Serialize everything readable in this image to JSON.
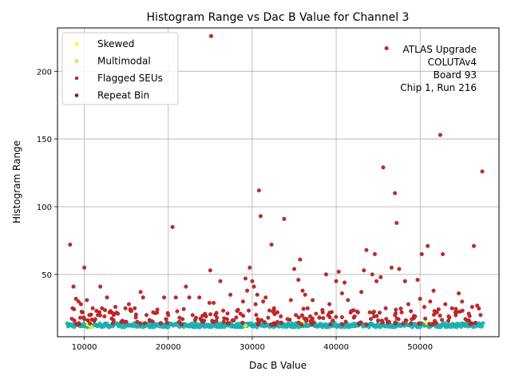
{
  "chart_data": {
    "type": "scatter",
    "title": "Histogram Range vs Dac B Value for Channel 3",
    "xlabel": "Dac B Value",
    "ylabel": "Histogram Range",
    "xlim": [
      6800,
      59400
    ],
    "ylim": [
      4,
      232
    ],
    "x_ticks": [
      10000,
      20000,
      30000,
      40000,
      50000
    ],
    "x_tick_labels": [
      "10000",
      "20000",
      "30000",
      "40000",
      "50000"
    ],
    "y_ticks": [
      50,
      100,
      150,
      200
    ],
    "y_tick_labels": [
      "50",
      "100",
      "150",
      "200"
    ],
    "grid": true,
    "legend_position": "top-left",
    "annotation": [
      "ATLAS Upgrade",
      "COLUTAv4",
      "Board 93",
      "Chip 1, Run 216"
    ],
    "series": [
      {
        "name": "",
        "color": "#1fbfbf",
        "in_legend": false,
        "x_range": [
          8000,
          57500
        ],
        "y_band": [
          11,
          14
        ],
        "count": 520
      },
      {
        "name": "Skewed",
        "color": "#ffff00",
        "in_legend": true,
        "points": [
          [
            10400,
            13
          ],
          [
            10700,
            12
          ],
          [
            36000,
            14
          ],
          [
            50800,
            14
          ]
        ]
      },
      {
        "name": "Multimodal",
        "color": "#adff2f",
        "in_legend": true,
        "points": [
          [
            10900,
            11
          ],
          [
            29200,
            12
          ]
        ]
      },
      {
        "name": "Flagged SEUs",
        "color": "#c8282d",
        "in_legend": true,
        "points": [
          [
            8300,
            72
          ],
          [
            8700,
            41
          ],
          [
            8600,
            25
          ],
          [
            9000,
            32
          ],
          [
            9300,
            30
          ],
          [
            9600,
            28
          ],
          [
            9800,
            22
          ],
          [
            10000,
            55
          ],
          [
            10300,
            31
          ],
          [
            9500,
            18
          ],
          [
            8800,
            16
          ],
          [
            9200,
            13
          ],
          [
            10600,
            20
          ],
          [
            11000,
            25
          ],
          [
            11300,
            17
          ],
          [
            11600,
            20
          ],
          [
            11900,
            41
          ],
          [
            12100,
            25
          ],
          [
            12400,
            19
          ],
          [
            12700,
            33
          ],
          [
            13000,
            22
          ],
          [
            13400,
            14
          ],
          [
            13700,
            26
          ],
          [
            14000,
            21
          ],
          [
            14400,
            15
          ],
          [
            14900,
            25
          ],
          [
            15300,
            28
          ],
          [
            15600,
            23
          ],
          [
            16000,
            25
          ],
          [
            16300,
            15
          ],
          [
            16700,
            37
          ],
          [
            17000,
            33
          ],
          [
            17400,
            20
          ],
          [
            17800,
            16
          ],
          [
            18200,
            22
          ],
          [
            18700,
            24
          ],
          [
            19100,
            14
          ],
          [
            19500,
            33
          ],
          [
            20000,
            20
          ],
          [
            20500,
            85
          ],
          [
            20900,
            33
          ],
          [
            21300,
            15
          ],
          [
            21700,
            17
          ],
          [
            22100,
            41
          ],
          [
            22500,
            33
          ],
          [
            22900,
            20
          ],
          [
            23300,
            18
          ],
          [
            23700,
            33
          ],
          [
            24100,
            15
          ],
          [
            24500,
            19
          ],
          [
            24900,
            29
          ],
          [
            25000,
            53
          ],
          [
            25100,
            226
          ],
          [
            25400,
            29
          ],
          [
            25800,
            18
          ],
          [
            26200,
            45
          ],
          [
            26600,
            15
          ],
          [
            27000,
            17
          ],
          [
            27400,
            35
          ],
          [
            27800,
            16
          ],
          [
            28200,
            23
          ],
          [
            28600,
            21
          ],
          [
            28900,
            30
          ],
          [
            29200,
            47
          ],
          [
            29400,
            38
          ],
          [
            29700,
            55
          ],
          [
            30000,
            45
          ],
          [
            30200,
            41
          ],
          [
            30400,
            28
          ],
          [
            30600,
            35
          ],
          [
            30800,
            112
          ],
          [
            31000,
            93
          ],
          [
            31300,
            30
          ],
          [
            31600,
            33
          ],
          [
            31900,
            18
          ],
          [
            32300,
            72
          ],
          [
            32600,
            25
          ],
          [
            33000,
            22
          ],
          [
            33400,
            19
          ],
          [
            33800,
            91
          ],
          [
            34200,
            17
          ],
          [
            34600,
            31
          ],
          [
            35000,
            54
          ],
          [
            35200,
            20
          ],
          [
            35500,
            46
          ],
          [
            35700,
            61
          ],
          [
            36000,
            38
          ],
          [
            36300,
            35
          ],
          [
            36600,
            25
          ],
          [
            36900,
            19
          ],
          [
            37200,
            31
          ],
          [
            37600,
            21
          ],
          [
            38000,
            18
          ],
          [
            38400,
            22
          ],
          [
            38800,
            50
          ],
          [
            39200,
            28
          ],
          [
            39600,
            16
          ],
          [
            40000,
            45
          ],
          [
            40300,
            52
          ],
          [
            40700,
            36
          ],
          [
            41000,
            44
          ],
          [
            41400,
            31
          ],
          [
            41800,
            23
          ],
          [
            42200,
            19
          ],
          [
            42600,
            22
          ],
          [
            43000,
            37
          ],
          [
            43300,
            53
          ],
          [
            43600,
            68
          ],
          [
            44000,
            22
          ],
          [
            44300,
            50
          ],
          [
            44600,
            65
          ],
          [
            44800,
            45
          ],
          [
            45000,
            16
          ],
          [
            45300,
            48
          ],
          [
            45600,
            129
          ],
          [
            45900,
            25
          ],
          [
            46000,
            217
          ],
          [
            46300,
            15
          ],
          [
            46600,
            55
          ],
          [
            47000,
            110
          ],
          [
            47200,
            88
          ],
          [
            47500,
            54
          ],
          [
            47800,
            22
          ],
          [
            48200,
            45
          ],
          [
            48600,
            28
          ],
          [
            49000,
            17
          ],
          [
            49400,
            19
          ],
          [
            49700,
            46
          ],
          [
            50000,
            32
          ],
          [
            50200,
            65
          ],
          [
            50500,
            26
          ],
          [
            50900,
            71
          ],
          [
            51200,
            30
          ],
          [
            51600,
            38
          ],
          [
            52000,
            22
          ],
          [
            52400,
            153
          ],
          [
            52700,
            65
          ],
          [
            53000,
            28
          ],
          [
            53400,
            19
          ],
          [
            53800,
            25
          ],
          [
            54200,
            22
          ],
          [
            54600,
            36
          ],
          [
            55000,
            30
          ],
          [
            55400,
            17
          ],
          [
            55800,
            21
          ],
          [
            56200,
            26
          ],
          [
            56400,
            71
          ],
          [
            56800,
            27
          ],
          [
            57200,
            20
          ],
          [
            57400,
            126
          ]
        ],
        "band_points": {
          "x_range": [
            8500,
            57000
          ],
          "y_range": [
            13,
            25
          ],
          "count": 170
        }
      },
      {
        "name": "Repeat Bin",
        "color": "#800080",
        "in_legend": true,
        "points": []
      }
    ]
  }
}
